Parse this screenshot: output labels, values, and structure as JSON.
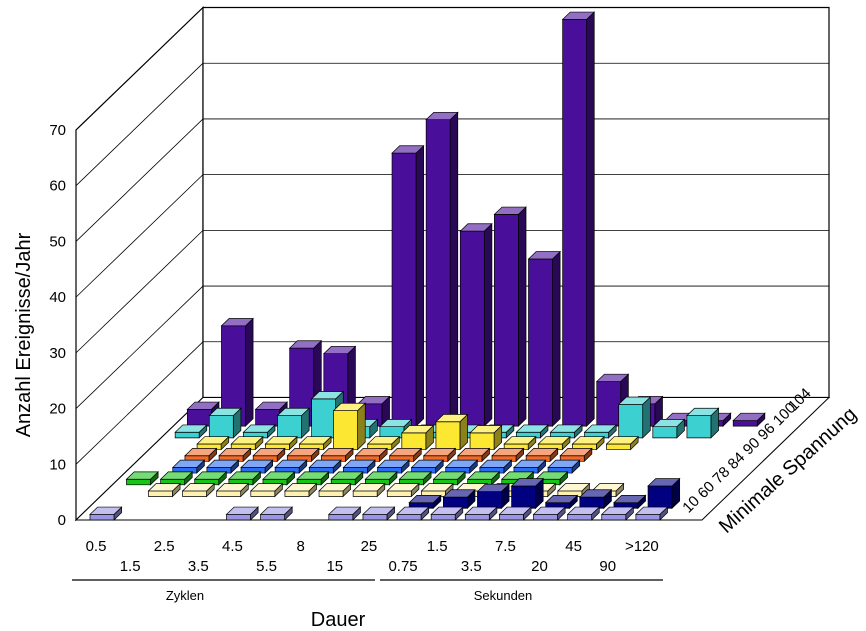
{
  "chart_data": {
    "type": "bar",
    "subtype": "3d-bar",
    "ylabel": "Anzahl Ereignisse/Jahr",
    "xlabel": "Dauer",
    "zlabel": "Minimale Spannung",
    "y_ticks": [
      "0",
      "10",
      "20",
      "30",
      "40",
      "50",
      "60",
      "70"
    ],
    "ylim": [
      0,
      70
    ],
    "x_ticks_row1": [
      "0.5",
      "2.5",
      "4.5",
      "8",
      "25",
      "1.5",
      "7.5",
      "45",
      ">120"
    ],
    "x_ticks_row2": [
      "1.5",
      "3.5",
      "5.5",
      "15",
      "0.75",
      "3.5",
      "20",
      "90"
    ],
    "x_group_labels": [
      "Zyklen",
      "Sekunden"
    ],
    "z_ticks": [
      "10",
      "60",
      "78",
      "84",
      "90",
      "96",
      "100",
      "104"
    ],
    "categories": [
      "0.5",
      "1.5",
      "2.5",
      "3.5",
      "4.5",
      "5.5",
      "8",
      "15",
      "25",
      "0.75",
      "1.5",
      "3.5",
      "7.5",
      "20",
      "45",
      "90",
      ">120"
    ],
    "series": [
      {
        "name": "10",
        "color": "#9b95e6",
        "values": [
          1,
          0,
          0,
          0,
          1,
          1,
          0,
          1,
          1,
          1,
          1,
          1,
          1,
          1,
          1,
          1,
          1
        ]
      },
      {
        "name": "60",
        "color": "#000080",
        "values": [
          0,
          0,
          0,
          0,
          0,
          0,
          0,
          0,
          0,
          1,
          2,
          3,
          4,
          1,
          2,
          1,
          4
        ]
      },
      {
        "name": "78",
        "color": "#fff2b0",
        "values": [
          0,
          1,
          1,
          1,
          1,
          1,
          1,
          1,
          1,
          1,
          1,
          1,
          1,
          1,
          1,
          0,
          0
        ]
      },
      {
        "name": "84",
        "color": "#18c418",
        "values": [
          1,
          1,
          1,
          1,
          1,
          1,
          1,
          1,
          1,
          1,
          1,
          1,
          1,
          0,
          0,
          0,
          0
        ]
      },
      {
        "name": "90",
        "color": "#2c6cf0",
        "values": [
          0,
          1,
          1,
          1,
          1,
          1,
          1,
          1,
          1,
          1,
          1,
          1,
          1,
          0,
          0,
          0,
          0
        ]
      },
      {
        "name": "96",
        "color": "#f06a28",
        "values": [
          0,
          1,
          1,
          1,
          1,
          1,
          1,
          1,
          1,
          1,
          1,
          1,
          1,
          0,
          0,
          0,
          0
        ]
      },
      {
        "name": "100",
        "color": "#fce832",
        "values": [
          0,
          1,
          1,
          1,
          1,
          7,
          1,
          3,
          5,
          3,
          1,
          1,
          1,
          1,
          0,
          0,
          0
        ]
      },
      {
        "name": "102",
        "color": "#3dd0d0",
        "values": [
          1,
          4,
          1,
          4,
          7,
          2,
          2,
          1,
          1,
          1,
          1,
          1,
          1,
          6,
          2,
          4,
          0
        ]
      },
      {
        "name": "104",
        "color": "#4a0f9a",
        "values": [
          3,
          18,
          3,
          14,
          13,
          4,
          49,
          55,
          35,
          38,
          30,
          73,
          8,
          4,
          1,
          1,
          1
        ]
      }
    ]
  }
}
